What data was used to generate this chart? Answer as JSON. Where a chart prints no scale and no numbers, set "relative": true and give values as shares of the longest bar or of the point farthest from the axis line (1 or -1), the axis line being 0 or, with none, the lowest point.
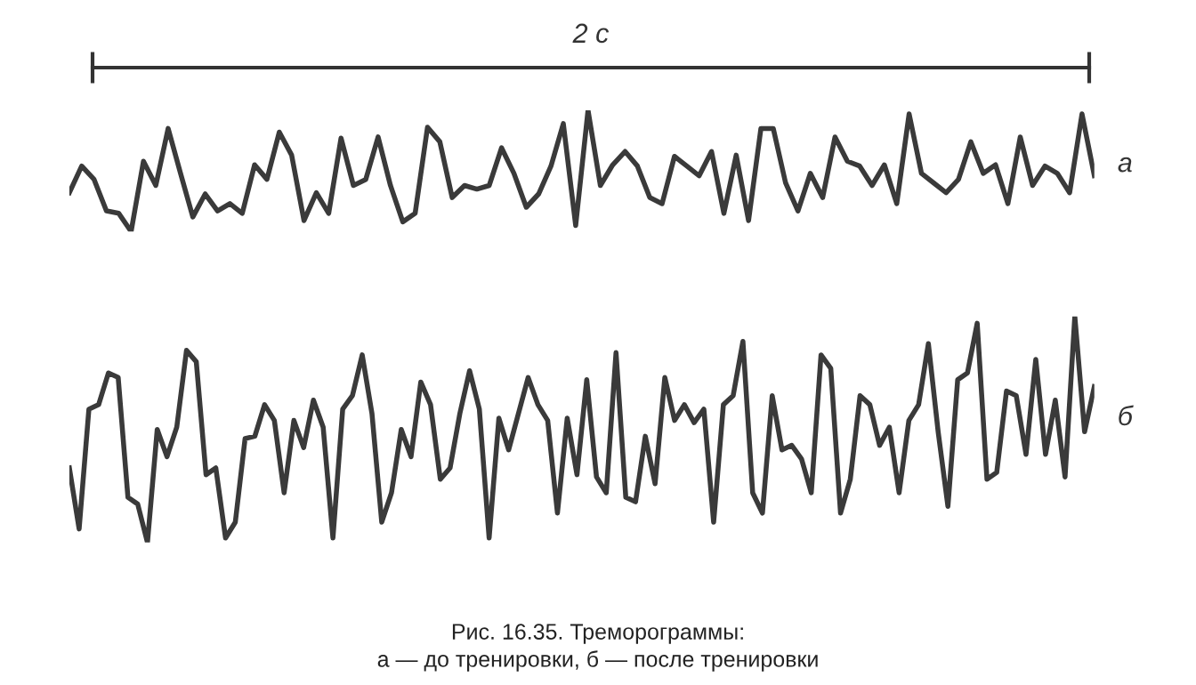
{
  "chart_data": [
    {
      "type": "line",
      "relative": true,
      "annotations": [
        "2 с"
      ],
      "categories": [
        null,
        null,
        null,
        null,
        null,
        null,
        null,
        null,
        null,
        null,
        null,
        null,
        null,
        null,
        null,
        null,
        null,
        null,
        null,
        null,
        null,
        null,
        null,
        null,
        null,
        null,
        null,
        null,
        null,
        null,
        null,
        null,
        null,
        null,
        null,
        null,
        null,
        null,
        null,
        null,
        null,
        null,
        null,
        null,
        null,
        null,
        null,
        null,
        null,
        null,
        null,
        null,
        null,
        null,
        null,
        null,
        null,
        null,
        null,
        null,
        null,
        null,
        null,
        null,
        null,
        null,
        null,
        null,
        null,
        null,
        null,
        null,
        null,
        null,
        null,
        null,
        null,
        null,
        null,
        null,
        null,
        null,
        null,
        null
      ],
      "series": [
        {
          "name": "а",
          "color": "#3a3a3a",
          "values": [
            0.32,
            0.54,
            0.43,
            0.17,
            0.15,
            0,
            0.58,
            0.38,
            0.85,
            0.48,
            0.12,
            0.31,
            0.17,
            0.23,
            0.15,
            0.55,
            0.43,
            0.82,
            0.63,
            0.09,
            0.32,
            0.15,
            0.77,
            0.38,
            0.43,
            0.78,
            0.38,
            0.08,
            0.15,
            0.86,
            0.74,
            0.28,
            0.38,
            0.35,
            0.38,
            0.69,
            0.48,
            0.2,
            0.31,
            0.54,
            0.89,
            0.05,
            1,
            0.38,
            0.55,
            0.66,
            0.54,
            0.28,
            0.23,
            0.62,
            0.54,
            0.46,
            0.66,
            0.15,
            0.63,
            0.09,
            0.85,
            0.85,
            0.4,
            0.17,
            0.48,
            0.28,
            0.78,
            0.58,
            0.54,
            0.38,
            0.55,
            0.23,
            0.97,
            0.48,
            0.4,
            0.32,
            0.43,
            0.74,
            0.48,
            0.55,
            0.23,
            0.78,
            0.38,
            0.54,
            0.48,
            0.32,
            0.97,
            0.46
          ]
        }
      ]
    },
    {
      "type": "line",
      "relative": true,
      "annotations": [
        "Рис. 16.35. Треморограммы:\nа — до тренировки, б — после тренировки"
      ],
      "categories": [
        null,
        null,
        null,
        null,
        null,
        null,
        null,
        null,
        null,
        null,
        null,
        null,
        null,
        null,
        null,
        null,
        null,
        null,
        null,
        null,
        null,
        null,
        null,
        null,
        null,
        null,
        null,
        null,
        null,
        null,
        null,
        null,
        null,
        null,
        null,
        null,
        null,
        null,
        null,
        null,
        null,
        null,
        null,
        null,
        null,
        null,
        null,
        null,
        null,
        null,
        null,
        null,
        null,
        null,
        null,
        null,
        null,
        null,
        null,
        null,
        null,
        null,
        null,
        null,
        null,
        null,
        null,
        null,
        null,
        null,
        null,
        null,
        null,
        null,
        null,
        null,
        null,
        null,
        null,
        null,
        null,
        null,
        null,
        null,
        null,
        null,
        null,
        null,
        null,
        null,
        null,
        null,
        null,
        null,
        null,
        null,
        null,
        null,
        null,
        null,
        null,
        null,
        null,
        null,
        null,
        null
      ],
      "series": [
        {
          "name": "б",
          "color": "#3a3a3a",
          "values": [
            0.33,
            0.06,
            0.59,
            0.61,
            0.75,
            0.73,
            0.2,
            0.17,
            0,
            0.5,
            0.38,
            0.51,
            0.85,
            0.8,
            0.3,
            0.33,
            0.02,
            0.09,
            0.46,
            0.47,
            0.61,
            0.54,
            0.22,
            0.54,
            0.42,
            0.63,
            0.51,
            0.02,
            0.59,
            0.65,
            0.83,
            0.57,
            0.09,
            0.22,
            0.5,
            0.38,
            0.71,
            0.61,
            0.28,
            0.33,
            0.57,
            0.76,
            0.59,
            0.02,
            0.55,
            0.41,
            0.57,
            0.73,
            0.61,
            0.54,
            0.13,
            0.55,
            0.3,
            0.72,
            0.29,
            0.22,
            0.84,
            0.2,
            0.18,
            0.47,
            0.26,
            0.73,
            0.54,
            0.61,
            0.53,
            0.59,
            0.09,
            0.61,
            0.65,
            0.89,
            0.22,
            0.13,
            0.65,
            0.41,
            0.43,
            0.37,
            0.22,
            0.83,
            0.77,
            0.13,
            0.28,
            0.65,
            0.61,
            0.43,
            0.51,
            0.22,
            0.54,
            0.61,
            0.88,
            0.49,
            0.16,
            0.72,
            0.75,
            0.97,
            0.28,
            0.31,
            0.67,
            0.65,
            0.39,
            0.81,
            0.39,
            0.63,
            0.29,
            1,
            0.49,
            0.69
          ]
        }
      ]
    }
  ]
}
